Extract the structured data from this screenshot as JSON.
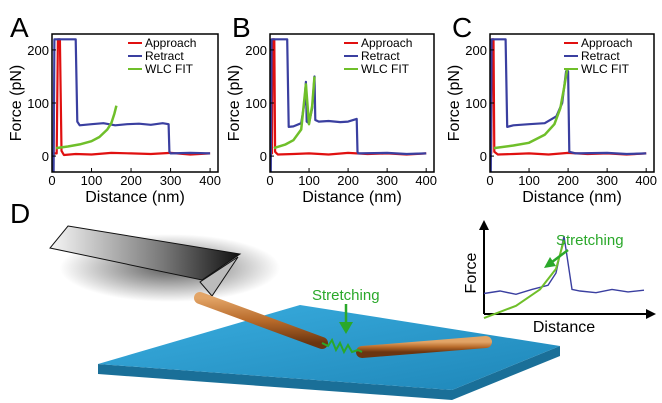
{
  "colors": {
    "approach": "#e01010",
    "retract": "#3a3fa0",
    "wlc_fit": "#6fbf2a",
    "stretching_label": "#2aa82a",
    "substrate": "#2f9fd0",
    "rod": "#b86a2a"
  },
  "chart_data": [
    {
      "panel": "A",
      "type": "line",
      "xlabel": "Distance (nm)",
      "ylabel": "Force (pN)",
      "xlim": [
        0,
        420
      ],
      "ylim": [
        -30,
        230
      ],
      "xticks": [
        "0",
        "100",
        "200",
        "300",
        "400"
      ],
      "yticks": [
        "0",
        "100",
        "200"
      ],
      "legend_position": "top-right",
      "series": [
        {
          "name": "Approach",
          "x": [
            0,
            12,
            15,
            20,
            24,
            30,
            60,
            100,
            150,
            200,
            250,
            300,
            350,
            400
          ],
          "y": [
            5,
            5,
            220,
            220,
            10,
            2,
            4,
            3,
            6,
            5,
            4,
            6,
            3,
            5
          ]
        },
        {
          "name": "Retract",
          "x": [
            0,
            4,
            6,
            10,
            40,
            56,
            60,
            64,
            70,
            100,
            130,
            160,
            190,
            220,
            250,
            280,
            295,
            297,
            300,
            350,
            400
          ],
          "y": [
            -30,
            -30,
            220,
            220,
            220,
            220,
            220,
            65,
            58,
            60,
            62,
            58,
            60,
            61,
            59,
            62,
            60,
            8,
            5,
            6,
            5
          ]
        },
        {
          "name": "WLC FIT",
          "x": [
            10,
            40,
            70,
            100,
            120,
            140,
            150,
            158,
            163
          ],
          "y": [
            15,
            18,
            22,
            28,
            36,
            50,
            62,
            80,
            95
          ]
        }
      ]
    },
    {
      "panel": "B",
      "type": "line",
      "xlabel": "Distance (nm)",
      "ylabel": "Force (pN)",
      "xlim": [
        0,
        420
      ],
      "ylim": [
        -30,
        230
      ],
      "xticks": [
        "0",
        "100",
        "200",
        "300",
        "400"
      ],
      "yticks": [
        "0",
        "100",
        "200"
      ],
      "legend_position": "top-right",
      "series": [
        {
          "name": "Approach",
          "x": [
            0,
            5,
            7,
            11,
            13,
            20,
            60,
            100,
            150,
            200,
            250,
            300,
            350,
            400
          ],
          "y": [
            5,
            5,
            220,
            220,
            8,
            3,
            4,
            5,
            3,
            6,
            4,
            5,
            3,
            5
          ]
        },
        {
          "name": "Retract",
          "x": [
            0,
            2,
            4,
            8,
            40,
            44,
            48,
            60,
            80,
            88,
            92,
            94,
            100,
            108,
            114,
            116,
            125,
            150,
            180,
            200,
            222,
            224,
            226,
            300,
            350,
            400
          ],
          "y": [
            -30,
            -30,
            220,
            220,
            220,
            220,
            55,
            56,
            62,
            100,
            140,
            65,
            62,
            90,
            150,
            68,
            65,
            66,
            64,
            65,
            70,
            8,
            5,
            6,
            4,
            5
          ]
        },
        {
          "name": "WLC FIT",
          "x": [
            10,
            40,
            60,
            80,
            92,
            100,
            108,
            114
          ],
          "y": [
            15,
            22,
            30,
            50,
            135,
            60,
            95,
            150
          ]
        }
      ]
    },
    {
      "panel": "C",
      "type": "line",
      "xlabel": "Distance (nm)",
      "ylabel": "Force (pN)",
      "xlim": [
        0,
        420
      ],
      "ylim": [
        -30,
        230
      ],
      "xticks": [
        "0",
        "100",
        "200",
        "300",
        "400"
      ],
      "yticks": [
        "0",
        "100",
        "200"
      ],
      "legend_position": "top-right",
      "series": [
        {
          "name": "Approach",
          "x": [
            0,
            3,
            5,
            9,
            11,
            20,
            60,
            100,
            150,
            200,
            250,
            300,
            350,
            400
          ],
          "y": [
            5,
            5,
            220,
            220,
            8,
            3,
            4,
            5,
            3,
            6,
            4,
            5,
            3,
            5
          ]
        },
        {
          "name": "Retract",
          "x": [
            0,
            2,
            4,
            8,
            36,
            40,
            44,
            60,
            100,
            140,
            170,
            185,
            195,
            200,
            203,
            220,
            300,
            350,
            400
          ],
          "y": [
            -30,
            -30,
            220,
            220,
            220,
            220,
            55,
            58,
            60,
            62,
            75,
            100,
            160,
            160,
            8,
            5,
            6,
            4,
            5
          ]
        },
        {
          "name": "WLC FIT",
          "x": [
            10,
            60,
            100,
            140,
            165,
            180,
            190,
            198
          ],
          "y": [
            15,
            20,
            25,
            40,
            60,
            90,
            130,
            165
          ]
        }
      ]
    },
    {
      "panel": "inset",
      "type": "line",
      "xlabel": "Distance",
      "ylabel": "Force",
      "annotation": "Stretching",
      "series": [
        {
          "name": "",
          "x": [
            0,
            10,
            20,
            30,
            40,
            45,
            50,
            55,
            60,
            70,
            80,
            90,
            100
          ],
          "y": [
            0.25,
            0.28,
            0.24,
            0.3,
            0.35,
            0.5,
            0.95,
            0.3,
            0.28,
            0.26,
            0.3,
            0.27,
            0.29
          ]
        },
        {
          "name": "",
          "x": [
            0,
            20,
            35,
            45,
            50
          ],
          "y": [
            -0.05,
            0.1,
            0.3,
            0.55,
            0.9
          ]
        }
      ]
    }
  ],
  "panel_letters": [
    "A",
    "B",
    "C",
    "D"
  ],
  "schematic": {
    "stretching_label": "Stretching"
  }
}
